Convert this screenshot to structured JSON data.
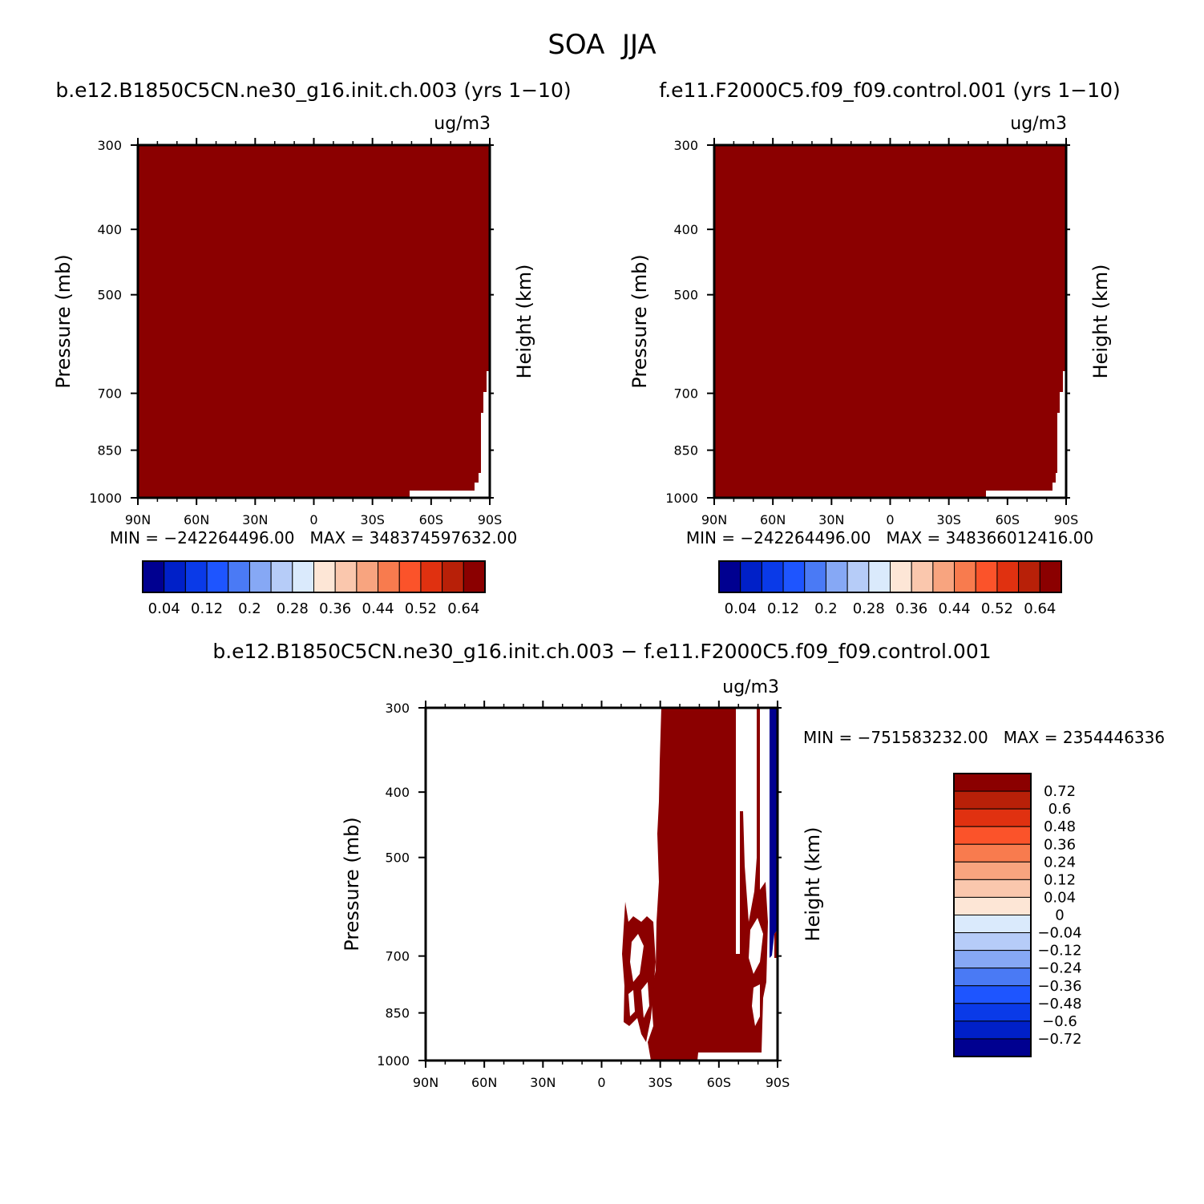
{
  "figure": {
    "title": "SOA  JJA"
  },
  "palette": {
    "fill_color": "#8b0000",
    "frame_color": "#000000",
    "colors_pos_cbar": [
      "#000090",
      "#0020c8",
      "#0a3ae8",
      "#1e55ff",
      "#4a7af5",
      "#86a8f5",
      "#b6ccf8",
      "#daeafc",
      "#fde6d6",
      "#fac7ad",
      "#f8a47f",
      "#f87b4e",
      "#fb532a",
      "#e03110",
      "#b82008",
      "#8b0000"
    ],
    "colors_diff_cbar": [
      "#8b0000",
      "#b82008",
      "#e03110",
      "#fb532a",
      "#f87b4e",
      "#f8a47f",
      "#fac7ad",
      "#fde6d6",
      "#daeafc",
      "#b6ccf8",
      "#86a8f5",
      "#4a7af5",
      "#1e55ff",
      "#0a3ae8",
      "#0020c8",
      "#000090"
    ],
    "diff_negative_color": "#000090"
  },
  "panels": [
    {
      "id": "case1",
      "title": "b.e12.B1850C5CN.ne30_g16.init.ch.003 (yrs 1−10)",
      "units": "ug/m3",
      "ylabel": "Pressure (mb)",
      "ylabel_right": "Height (km)",
      "stats": "MIN = −242264496.00   MAX = 348374597632.00",
      "cbar_labels": [
        "0.04",
        "0.12",
        "0.2",
        "0.28",
        "0.36",
        "0.44",
        "0.52",
        "0.64"
      ]
    },
    {
      "id": "case2",
      "title": "f.e11.F2000C5.f09_f09.control.001 (yrs 1−10)",
      "units": "ug/m3",
      "ylabel": "Pressure (mb)",
      "ylabel_right": "Height (km)",
      "stats": "MIN = −242264496.00   MAX = 348366012416.00",
      "cbar_labels": [
        "0.04",
        "0.12",
        "0.2",
        "0.28",
        "0.36",
        "0.44",
        "0.52",
        "0.64"
      ]
    },
    {
      "id": "diff",
      "title": "b.e12.B1850C5CN.ne30_g16.init.ch.003 − f.e11.F2000C5.f09_f09.control.001",
      "units": "ug/m3",
      "ylabel": "Pressure (mb)",
      "ylabel_right": "Height (km)",
      "stats": "MIN = −751583232.00   MAX = 2354446336",
      "cbar_labels": [
        "0.72",
        "0.6",
        "0.48",
        "0.36",
        "0.24",
        "0.12",
        "0.04",
        "0",
        "−0.04",
        "−0.12",
        "−0.24",
        "−0.36",
        "−0.48",
        "−0.6",
        "−0.72"
      ]
    }
  ],
  "chart_data": [
    {
      "type": "heatmap",
      "title": "b.e12.B1850C5CN.ne30_g16.init.ch.003 (yrs 1−10)",
      "xlabel": "",
      "ylabel": "Pressure (mb)",
      "units": "ug/m3",
      "x_ticks": [
        "90N",
        "60N",
        "30N",
        "0",
        "30S",
        "60S",
        "90S"
      ],
      "y_ticks": [
        300,
        400,
        500,
        700,
        850,
        1000
      ],
      "xlim": [
        90,
        -90
      ],
      "ylim_mb": [
        1000,
        300
      ],
      "y_scale": "log",
      "min": -242264496.0,
      "max": 348374597632.0,
      "fill_level": "> 0.64 (darkest red) everywhere except a small missing region near 1000 mb at high southern latitudes",
      "empty_region": {
        "lat_from": -47,
        "lat_to": -90,
        "p_top_mb": 660
      }
    },
    {
      "type": "heatmap",
      "title": "f.e11.F2000C5.f09_f09.control.001 (yrs 1−10)",
      "xlabel": "",
      "ylabel": "Pressure (mb)",
      "units": "ug/m3",
      "x_ticks": [
        "90N",
        "60N",
        "30N",
        "0",
        "30S",
        "60S",
        "90S"
      ],
      "y_ticks": [
        300,
        400,
        500,
        700,
        850,
        1000
      ],
      "xlim": [
        90,
        -90
      ],
      "ylim_mb": [
        1000,
        300
      ],
      "y_scale": "log",
      "min": -242264496.0,
      "max": 348366012416.0,
      "fill_level": "> 0.64 (darkest red) everywhere except a small missing region near 1000 mb at high southern latitudes",
      "empty_region": {
        "lat_from": -47,
        "lat_to": -90,
        "p_top_mb": 660
      }
    },
    {
      "type": "heatmap",
      "title": "b.e12.B1850C5CN.ne30_g16.init.ch.003 − f.e11.F2000C5.f09_f09.control.001",
      "xlabel": "",
      "ylabel": "Pressure (mb)",
      "units": "ug/m3",
      "x_ticks": [
        "90N",
        "60N",
        "30N",
        "0",
        "30S",
        "60S",
        "90S"
      ],
      "y_ticks": [
        300,
        400,
        500,
        700,
        850,
        1000
      ],
      "xlim": [
        90,
        -90
      ],
      "ylim_mb": [
        1000,
        300
      ],
      "y_scale": "log",
      "min": -751583232.0,
      "max": 2354446336,
      "levels": [
        -0.72,
        -0.6,
        -0.48,
        -0.36,
        -0.24,
        -0.12,
        -0.04,
        0,
        0.04,
        0.12,
        0.24,
        0.36,
        0.48,
        0.6,
        0.72
      ],
      "positive_region": "> 0.72 roughly from 30S to 85S, full column, plus patches 15S-28S between 650 and 870 mb",
      "negative_region": "< -0.72 near 87S-90S, 300-700 mb",
      "elsewhere": "between -0.04 and 0.04 (white)"
    }
  ]
}
